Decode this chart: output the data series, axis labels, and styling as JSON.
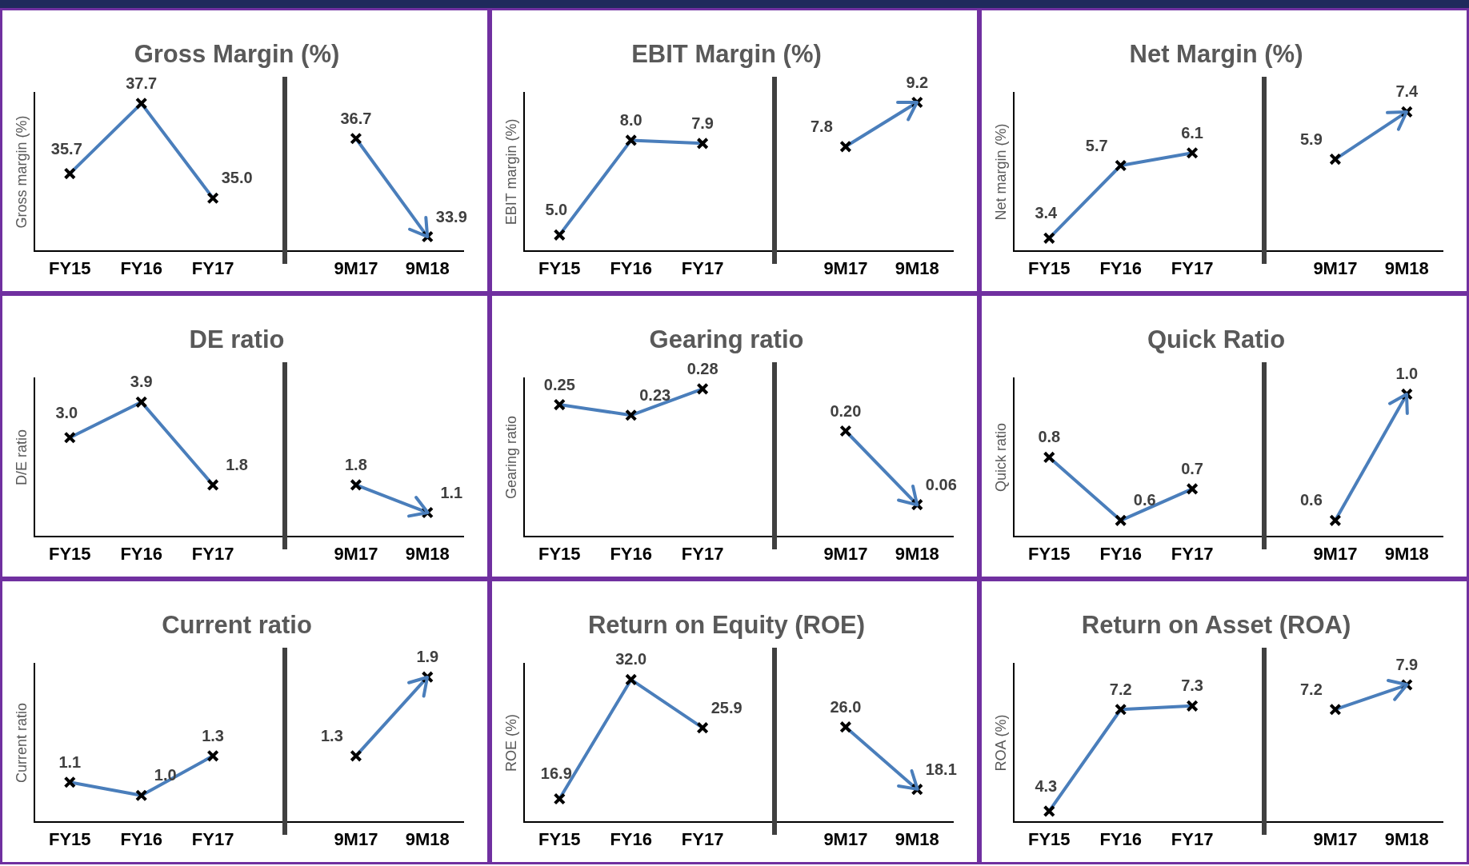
{
  "chart_data": [
    {
      "type": "line",
      "title": "Gross Margin (%)",
      "ylabel": "Gross margin (%)",
      "categories": [
        "FY15",
        "FY16",
        "FY17",
        null,
        "9M17",
        "9M18"
      ],
      "marker": "cross",
      "tick_labels": "x",
      "series": [
        {
          "color": "#4a7ebb",
          "values": [
            35.7,
            37.7,
            35.0,
            null,
            null,
            null
          ],
          "value_labels": [
            "35.7",
            "37.7",
            "35.0",
            null,
            null,
            null
          ]
        },
        {
          "color": "#4a7ebb",
          "values": [
            null,
            null,
            null,
            null,
            36.7,
            33.9
          ],
          "value_labels": [
            null,
            null,
            null,
            null,
            "36.7",
            "33.9"
          ]
        }
      ]
    },
    {
      "type": "line",
      "title": "EBIT Margin (%)",
      "ylabel": "EBIT margin (%)",
      "categories": [
        "FY15",
        "FY16",
        "FY17",
        null,
        "9M17",
        "9M18"
      ],
      "marker": "cross",
      "tick_labels": "x",
      "series": [
        {
          "color": "#4a7ebb",
          "values": [
            5.0,
            8.0,
            7.9,
            null,
            null,
            null
          ],
          "value_labels": [
            "5.0",
            "8.0",
            "7.9",
            null,
            null,
            null
          ]
        },
        {
          "color": "#4a7ebb",
          "values": [
            null,
            null,
            null,
            null,
            7.8,
            9.2
          ],
          "value_labels": [
            null,
            null,
            null,
            null,
            "7.8",
            "9.2"
          ]
        }
      ]
    },
    {
      "type": "line",
      "title": "Net Margin (%)",
      "ylabel": "Net margin (%)",
      "categories": [
        "FY15",
        "FY16",
        "FY17",
        null,
        "9M17",
        "9M18"
      ],
      "marker": "cross",
      "tick_labels": "x",
      "series": [
        {
          "color": "#4a7ebb",
          "values": [
            3.4,
            5.7,
            6.1,
            null,
            null,
            null
          ],
          "value_labels": [
            "3.4",
            "5.7",
            "6.1",
            null,
            null,
            null
          ]
        },
        {
          "color": "#4a7ebb",
          "values": [
            null,
            null,
            null,
            null,
            5.9,
            7.4
          ],
          "value_labels": [
            null,
            null,
            null,
            null,
            "5.9",
            "7.4"
          ]
        }
      ]
    },
    {
      "type": "line",
      "title": "DE ratio",
      "ylabel": "D/E ratio",
      "categories": [
        "FY15",
        "FY16",
        "FY17",
        null,
        "9M17",
        "9M18"
      ],
      "marker": "cross",
      "tick_labels": "x",
      "series": [
        {
          "color": "#4a7ebb",
          "values": [
            3.0,
            3.9,
            1.8,
            null,
            null,
            null
          ],
          "value_labels": [
            "3.0",
            "3.9",
            "1.8",
            null,
            null,
            null
          ]
        },
        {
          "color": "#4a7ebb",
          "values": [
            null,
            null,
            null,
            null,
            1.8,
            1.1
          ],
          "value_labels": [
            null,
            null,
            null,
            null,
            "1.8",
            "1.1"
          ]
        }
      ]
    },
    {
      "type": "line",
      "title": "Gearing ratio",
      "ylabel": "Gearing ratio",
      "categories": [
        "FY15",
        "FY16",
        "FY17",
        null,
        "9M17",
        "9M18"
      ],
      "marker": "cross",
      "tick_labels": "x",
      "series": [
        {
          "color": "#4a7ebb",
          "values": [
            0.25,
            0.23,
            0.28,
            null,
            null,
            null
          ],
          "value_labels": [
            "0.25",
            "0.23",
            "0.28",
            null,
            null,
            null
          ]
        },
        {
          "color": "#4a7ebb",
          "values": [
            null,
            null,
            null,
            null,
            0.2,
            0.06
          ],
          "value_labels": [
            null,
            null,
            null,
            null,
            "0.20",
            "0.06"
          ]
        }
      ]
    },
    {
      "type": "line",
      "title": "Quick Ratio",
      "ylabel": "Quick ratio",
      "categories": [
        "FY15",
        "FY16",
        "FY17",
        null,
        "9M17",
        "9M18"
      ],
      "marker": "cross",
      "tick_labels": "x",
      "series": [
        {
          "color": "#4a7ebb",
          "values": [
            0.8,
            0.6,
            0.7,
            null,
            null,
            null
          ],
          "value_labels": [
            "0.8",
            "0.6",
            "0.7",
            null,
            null,
            null
          ]
        },
        {
          "color": "#4a7ebb",
          "values": [
            null,
            null,
            null,
            null,
            0.6,
            1.0
          ],
          "value_labels": [
            null,
            null,
            null,
            null,
            "0.6",
            "1.0"
          ]
        }
      ]
    },
    {
      "type": "line",
      "title": "Current ratio",
      "ylabel": "Current ratio",
      "categories": [
        "FY15",
        "FY16",
        "FY17",
        null,
        "9M17",
        "9M18"
      ],
      "marker": "cross",
      "tick_labels": "x",
      "series": [
        {
          "color": "#4a7ebb",
          "values": [
            1.1,
            1.0,
            1.3,
            null,
            null,
            null
          ],
          "value_labels": [
            "1.1",
            "1.0",
            "1.3",
            null,
            null,
            null
          ]
        },
        {
          "color": "#4a7ebb",
          "values": [
            null,
            null,
            null,
            null,
            1.3,
            1.9
          ],
          "value_labels": [
            null,
            null,
            null,
            null,
            "1.3",
            "1.9"
          ]
        }
      ]
    },
    {
      "type": "line",
      "title": "Return on Equity (ROE)",
      "ylabel": "ROE (%)",
      "categories": [
        "FY15",
        "FY16",
        "FY17",
        null,
        "9M17",
        "9M18"
      ],
      "marker": "cross",
      "tick_labels": "x",
      "series": [
        {
          "color": "#4a7ebb",
          "values": [
            16.9,
            32.0,
            25.9,
            null,
            null,
            null
          ],
          "value_labels": [
            "16.9",
            "32.0",
            "25.9",
            null,
            null,
            null
          ]
        },
        {
          "color": "#4a7ebb",
          "values": [
            null,
            null,
            null,
            null,
            26.0,
            18.1
          ],
          "value_labels": [
            null,
            null,
            null,
            null,
            "26.0",
            "18.1"
          ]
        }
      ]
    },
    {
      "type": "line",
      "title": "Return on Asset (ROA)",
      "ylabel": "ROA (%)",
      "categories": [
        "FY15",
        "FY16",
        "FY17",
        null,
        "9M17",
        "9M18"
      ],
      "marker": "cross",
      "tick_labels": "x",
      "series": [
        {
          "color": "#4a7ebb",
          "values": [
            4.3,
            7.2,
            7.3,
            null,
            null,
            null
          ],
          "value_labels": [
            "4.3",
            "7.2",
            "7.3",
            null,
            null,
            null
          ]
        },
        {
          "color": "#4a7ebb",
          "values": [
            null,
            null,
            null,
            null,
            7.2,
            7.9
          ],
          "value_labels": [
            null,
            null,
            null,
            null,
            "7.2",
            "7.9"
          ]
        }
      ]
    }
  ]
}
